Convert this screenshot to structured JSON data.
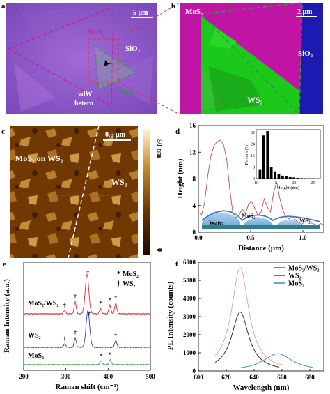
{
  "panels": {
    "a": {
      "letter": "a",
      "scale": "5 μm",
      "labels": {
        "mos2": "MoS₂",
        "sio2": "SiO₂",
        "ws2": "WS₂",
        "vdw": "vdW",
        "hetero": "hetero"
      }
    },
    "b": {
      "letter": "b",
      "scale": "2 μm",
      "labels": {
        "mos2": "MoS₂",
        "sio2": "SiO₂",
        "ws2": "WS₂"
      }
    },
    "c": {
      "letter": "c",
      "scale": "0.5 μm",
      "labels": {
        "mos2_on_ws2": "MoS₂ on WS₂",
        "ws2": "WS₂"
      },
      "colorbar": {
        "top": "50 nm",
        "bottom": "0"
      }
    },
    "d": {
      "letter": "d"
    },
    "e": {
      "letter": "e"
    },
    "f": {
      "letter": "f"
    }
  },
  "chart_data": [
    {
      "id": "d-profile",
      "type": "line",
      "xlabel": "Distance (μm)",
      "ylabel": "Height (nm)",
      "xlim": [
        0,
        1.2
      ],
      "ylim": [
        0,
        16
      ],
      "xticks": [
        "0.0",
        "0.5",
        "1.0"
      ],
      "yticks": [
        "0",
        "4",
        "8",
        "12",
        "16"
      ],
      "color": "#c0504d",
      "x": [
        0.0,
        0.03,
        0.06,
        0.09,
        0.12,
        0.15,
        0.18,
        0.21,
        0.24,
        0.27,
        0.3,
        0.33,
        0.36,
        0.39,
        0.42,
        0.45,
        0.48,
        0.51,
        0.54,
        0.57,
        0.6,
        0.63,
        0.66,
        0.69,
        0.72,
        0.75,
        0.78,
        0.81,
        0.84,
        0.87,
        0.9,
        0.93,
        0.96,
        0.99,
        1.02,
        1.05,
        1.08,
        1.11,
        1.14,
        1.17,
        1.2
      ],
      "y": [
        3.0,
        2.6,
        4.5,
        8.5,
        11.5,
        13.0,
        13.6,
        13.8,
        13.2,
        11.0,
        6.5,
        2.8,
        2.2,
        2.6,
        3.5,
        2.8,
        4.2,
        4.6,
        3.6,
        2.5,
        3.0,
        5.0,
        3.8,
        3.0,
        6.0,
        7.5,
        5.0,
        3.2,
        2.2,
        2.0,
        2.4,
        1.8,
        1.5,
        1.2,
        1.6,
        1.9,
        1.4,
        1.2,
        1.0,
        1.3,
        1.1
      ],
      "inset": {
        "type": "bar",
        "xlabel": "Height (nm)",
        "ylabel": "Percent (%)",
        "xlim": [
          10,
          27
        ],
        "ylim": [
          0,
          34
        ],
        "xticks": [
          "10",
          "15",
          "20",
          "25"
        ],
        "yticks": [
          "0",
          "8",
          "16",
          "24",
          "32"
        ],
        "x": [
          11,
          12,
          13,
          14,
          15,
          16,
          17,
          18,
          19,
          20,
          21,
          22,
          23,
          24,
          25
        ],
        "values": [
          6,
          30,
          33,
          8,
          5,
          3,
          2,
          1.5,
          1,
          0.8,
          0.5,
          0.3,
          0.2,
          0.2,
          0.1
        ]
      },
      "schematic_labels": {
        "water": "Water",
        "mos2": "MoS₂",
        "ws2": "WS₂"
      }
    },
    {
      "id": "e-raman",
      "type": "line",
      "xlabel": "Raman shift (cm⁻¹)",
      "ylabel": "Raman Intensity (a.u.)",
      "xlim": [
        200,
        500
      ],
      "xticks": [
        "200",
        "300",
        "400",
        "500"
      ],
      "legend": [
        {
          "symbol": "*",
          "label": "MoS₂"
        },
        {
          "symbol": "†",
          "label": "WS₂"
        }
      ],
      "series": [
        {
          "name": "MoS₂/WS₂",
          "color": "#d9322b",
          "offset": 2.0,
          "peaks": [
            [
              297,
              0.05
            ],
            [
              322,
              0.18
            ],
            [
              350,
              0.6
            ],
            [
              382,
              0.08
            ],
            [
              404,
              0.13
            ],
            [
              418,
              0.16
            ]
          ],
          "markers": [
            {
              "x": 297,
              "s": "†"
            },
            {
              "x": 322,
              "s": "†"
            },
            {
              "x": 352,
              "s": "†"
            },
            {
              "x": 382,
              "s": "*"
            },
            {
              "x": 404,
              "s": "*"
            },
            {
              "x": 418,
              "s": "†"
            }
          ]
        },
        {
          "name": "WS₂",
          "color": "#3b3fb5",
          "offset": 1.0,
          "peaks": [
            [
              297,
              0.05
            ],
            [
              322,
              0.14
            ],
            [
              352,
              0.55
            ],
            [
              418,
              0.1
            ]
          ],
          "markers": [
            {
              "x": 297,
              "s": "†"
            },
            {
              "x": 322,
              "s": "†"
            },
            {
              "x": 355,
              "s": "†"
            },
            {
              "x": 418,
              "s": "†"
            }
          ]
        },
        {
          "name": "MoS₂",
          "color": "#3a9c4a",
          "offset": 0.0,
          "peaks": [
            [
              383,
              0.06
            ],
            [
              405,
              0.08
            ]
          ],
          "markers": [
            {
              "x": 384,
              "s": "*"
            },
            {
              "x": 404,
              "s": "*"
            }
          ]
        }
      ]
    },
    {
      "id": "f-pl",
      "type": "line",
      "xlabel": "Wavelength (nm)",
      "ylabel": "PL Intensity (counts)",
      "xlim": [
        600,
        690
      ],
      "ylim": [
        0,
        6000
      ],
      "xticks": [
        "600",
        "620",
        "640",
        "660",
        "680"
      ],
      "yticks": [
        "0",
        "1000",
        "2000",
        "3000",
        "4000",
        "5000",
        "6000"
      ],
      "series": [
        {
          "name": "MoS₂/WS₂",
          "color": "#e8a3a3",
          "legend_color": "#d0302b",
          "center": 630,
          "height": 5700,
          "width": 7.5,
          "base": 0,
          "range": [
            612,
            660
          ]
        },
        {
          "name": "WS₂",
          "color": "#333333",
          "legend_color": "#555555",
          "center": 630,
          "height": 3250,
          "width": 7.5,
          "base": 0,
          "range": [
            612,
            658
          ]
        },
        {
          "name": "MoS₂",
          "color": "#3a8fd1",
          "legend_color": "#3a8fd1",
          "center": 657,
          "height": 950,
          "width": 13,
          "base": 0,
          "range": [
            630,
            682
          ]
        }
      ]
    }
  ]
}
